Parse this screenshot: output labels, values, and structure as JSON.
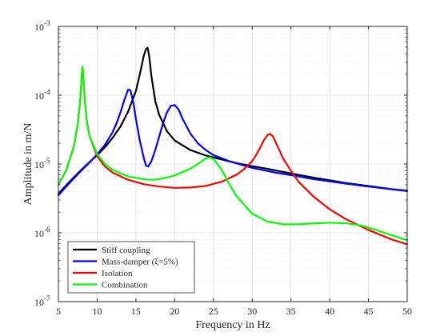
{
  "chart_data": {
    "type": "line",
    "title": "",
    "xlabel": "Frequency in Hz",
    "ylabel": "Amplitude in m/N",
    "xlim": [
      5,
      50
    ],
    "ylim": [
      1e-07,
      0.001
    ],
    "yscale": "log",
    "grid": true,
    "minor_grid": true,
    "legend_position": "bottom-left",
    "x_ticks": [
      5,
      10,
      15,
      20,
      25,
      30,
      35,
      40,
      45,
      50
    ],
    "x_tick_labels": [
      "5",
      "10",
      "15",
      "20",
      "25",
      "30",
      "35",
      "40",
      "45",
      "50"
    ],
    "y_ticks": [
      1e-07,
      1e-06,
      1e-05,
      0.0001,
      0.001
    ],
    "y_tick_labels": [
      {
        "base": "10",
        "exp": "-7"
      },
      {
        "base": "10",
        "exp": "-6"
      },
      {
        "base": "10",
        "exp": "-5"
      },
      {
        "base": "10",
        "exp": "-4"
      },
      {
        "base": "10",
        "exp": "-3"
      }
    ],
    "series": [
      {
        "name": "Stiff coupling",
        "color": "#000000",
        "x": [
          5,
          6,
          7,
          8,
          9,
          10,
          11,
          12,
          13,
          14,
          15,
          15.5,
          16,
          16.3,
          16.5,
          16.7,
          17,
          17.5,
          18,
          19,
          20,
          22,
          24,
          26,
          28,
          30,
          32,
          35,
          38,
          40,
          42,
          45,
          48,
          50
        ],
        "y": [
          3.7e-06,
          4.9e-06,
          6.4e-06,
          8.3e-06,
          1.06e-05,
          1.34e-05,
          1.75e-05,
          2.4e-05,
          3.5e-05,
          5.8e-05,
          0.000115,
          0.0002,
          0.00037,
          0.00047,
          0.00049,
          0.00038,
          0.00019,
          8.2e-05,
          5.2e-05,
          3e-05,
          2.2e-05,
          1.6e-05,
          1.33e-05,
          1.17e-05,
          1.03e-05,
          9.3e-06,
          8.5e-06,
          7.3e-06,
          6.3e-06,
          5.8e-06,
          5.3e-06,
          4.8e-06,
          4.3e-06,
          4.1e-06
        ]
      },
      {
        "name": "Mass-damper (ξ=5%)",
        "color": "#0000ff",
        "x": [
          5,
          6,
          7,
          8,
          9,
          10,
          11,
          12,
          12.5,
          13,
          13.5,
          14,
          14.3,
          14.7,
          15,
          15.5,
          16,
          16.3,
          16.6,
          17,
          17.5,
          18,
          18.5,
          19,
          19.5,
          20,
          20.5,
          21,
          22,
          23,
          24,
          25,
          27,
          30,
          33,
          35,
          38,
          40,
          42,
          45,
          48,
          50
        ],
        "y": [
          3.5e-06,
          4.7e-06,
          6.2e-06,
          8.1e-06,
          1.05e-05,
          1.38e-05,
          1.9e-05,
          2.9e-05,
          3.9e-05,
          5.6e-05,
          8.5e-05,
          0.000121,
          0.000118,
          7.5e-05,
          4.5e-05,
          2.2e-05,
          1.25e-05,
          9.5e-06,
          9.2e-06,
          1.1e-05,
          1.6e-05,
          2.5e-05,
          3.9e-05,
          5.6e-05,
          7e-05,
          7.2e-05,
          6.2e-05,
          4.6e-05,
          2.8e-05,
          2e-05,
          1.6e-05,
          1.35e-05,
          1.1e-05,
          8.8e-06,
          7.5e-06,
          6.9e-06,
          6e-06,
          5.6e-06,
          5.2e-06,
          4.7e-06,
          4.3e-06,
          4.05e-06
        ]
      },
      {
        "name": "Isolation",
        "color": "#ff0000",
        "x": [
          5,
          6,
          7,
          7.5,
          7.8,
          8.0,
          8.1,
          8.2,
          8.4,
          8.7,
          9,
          10,
          11,
          12,
          14,
          16,
          18,
          20,
          22,
          24,
          26,
          28,
          29,
          30,
          30.5,
          31,
          31.5,
          32,
          32.3,
          32.7,
          33,
          33.5,
          34,
          35,
          36,
          38,
          40,
          42,
          45,
          48,
          50
        ],
        "y": [
          5e-06,
          8e-06,
          1.8e-05,
          3.8e-05,
          8e-05,
          0.00018,
          0.00026,
          0.00021,
          8.5e-05,
          4e-05,
          2.6e-05,
          1.3e-05,
          9.2e-06,
          7.5e-06,
          5.9e-06,
          5.1e-06,
          4.7e-06,
          4.5e-06,
          4.55e-06,
          4.8e-06,
          5.5e-06,
          7e-06,
          8.5e-06,
          1.1e-05,
          1.35e-05,
          1.7e-05,
          2.2e-05,
          2.65e-05,
          2.75e-05,
          2.5e-05,
          2.1e-05,
          1.6e-05,
          1.2e-05,
          8e-06,
          5.5e-06,
          3.3e-06,
          2.2e-06,
          1.6e-06,
          1.1e-06,
          8e-07,
          6.8e-07
        ]
      },
      {
        "name": "Combination",
        "color": "#00ff00",
        "x": [
          5,
          6,
          7,
          7.5,
          7.8,
          8.0,
          8.1,
          8.2,
          8.4,
          8.7,
          9,
          10,
          11,
          12,
          14,
          16,
          17,
          18,
          20,
          22,
          23,
          24,
          24.5,
          25,
          26,
          27,
          28,
          30,
          32,
          34,
          36,
          38,
          40,
          42,
          44,
          46,
          48,
          50
        ],
        "y": [
          5e-06,
          8e-06,
          1.8e-05,
          3.8e-05,
          8e-05,
          0.00018,
          0.00026,
          0.00021,
          8.5e-05,
          4e-05,
          2.6e-05,
          1.4e-05,
          1e-05,
          8.2e-06,
          6.6e-06,
          6e-06,
          5.9e-06,
          6e-06,
          6.8e-06,
          8.5e-06,
          1e-05,
          1.2e-05,
          1.25e-05,
          1.18e-05,
          8.5e-06,
          5.2e-06,
          3.4e-06,
          1.9e-06,
          1.45e-06,
          1.33e-06,
          1.33e-06,
          1.37e-06,
          1.4e-06,
          1.38e-06,
          1.28e-06,
          1.1e-06,
          9.2e-07,
          7.8e-07
        ]
      }
    ]
  }
}
